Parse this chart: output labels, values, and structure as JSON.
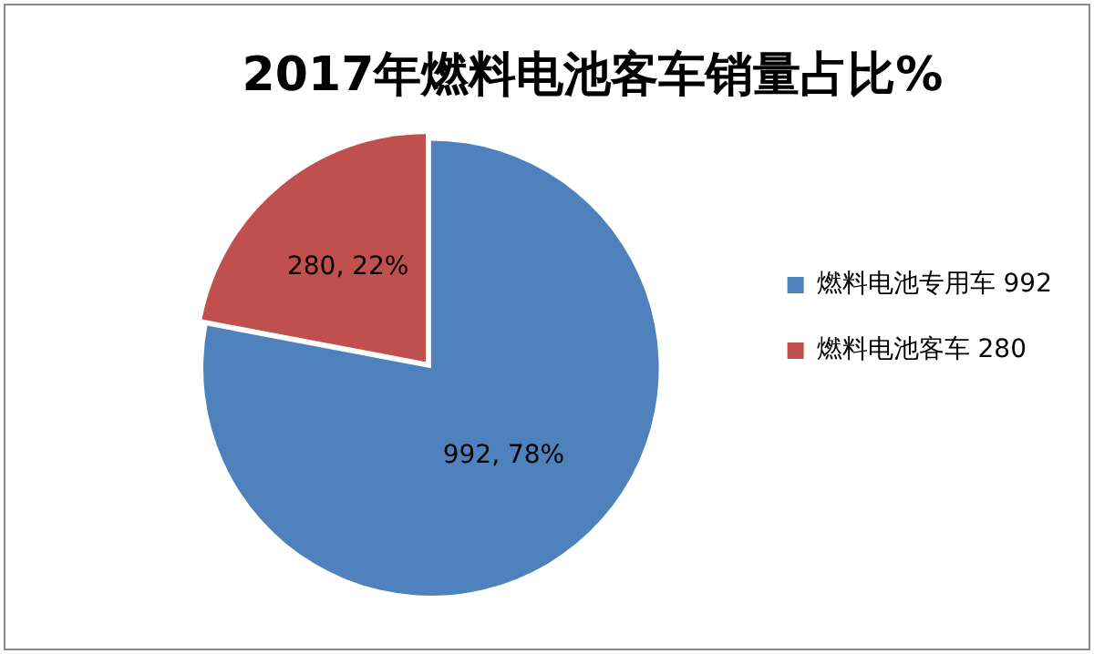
{
  "chart_data": {
    "type": "pie",
    "title": "2017年燃料电池客车销量占比%",
    "categories": [
      "燃料电池专用车 992",
      "燃料电池客车 280"
    ],
    "values": [
      992,
      280
    ],
    "colors": [
      "#4f81bd",
      "#c0504d"
    ],
    "value_labels": [
      "992, 78%",
      "280, 22%"
    ],
    "legend": "right"
  }
}
